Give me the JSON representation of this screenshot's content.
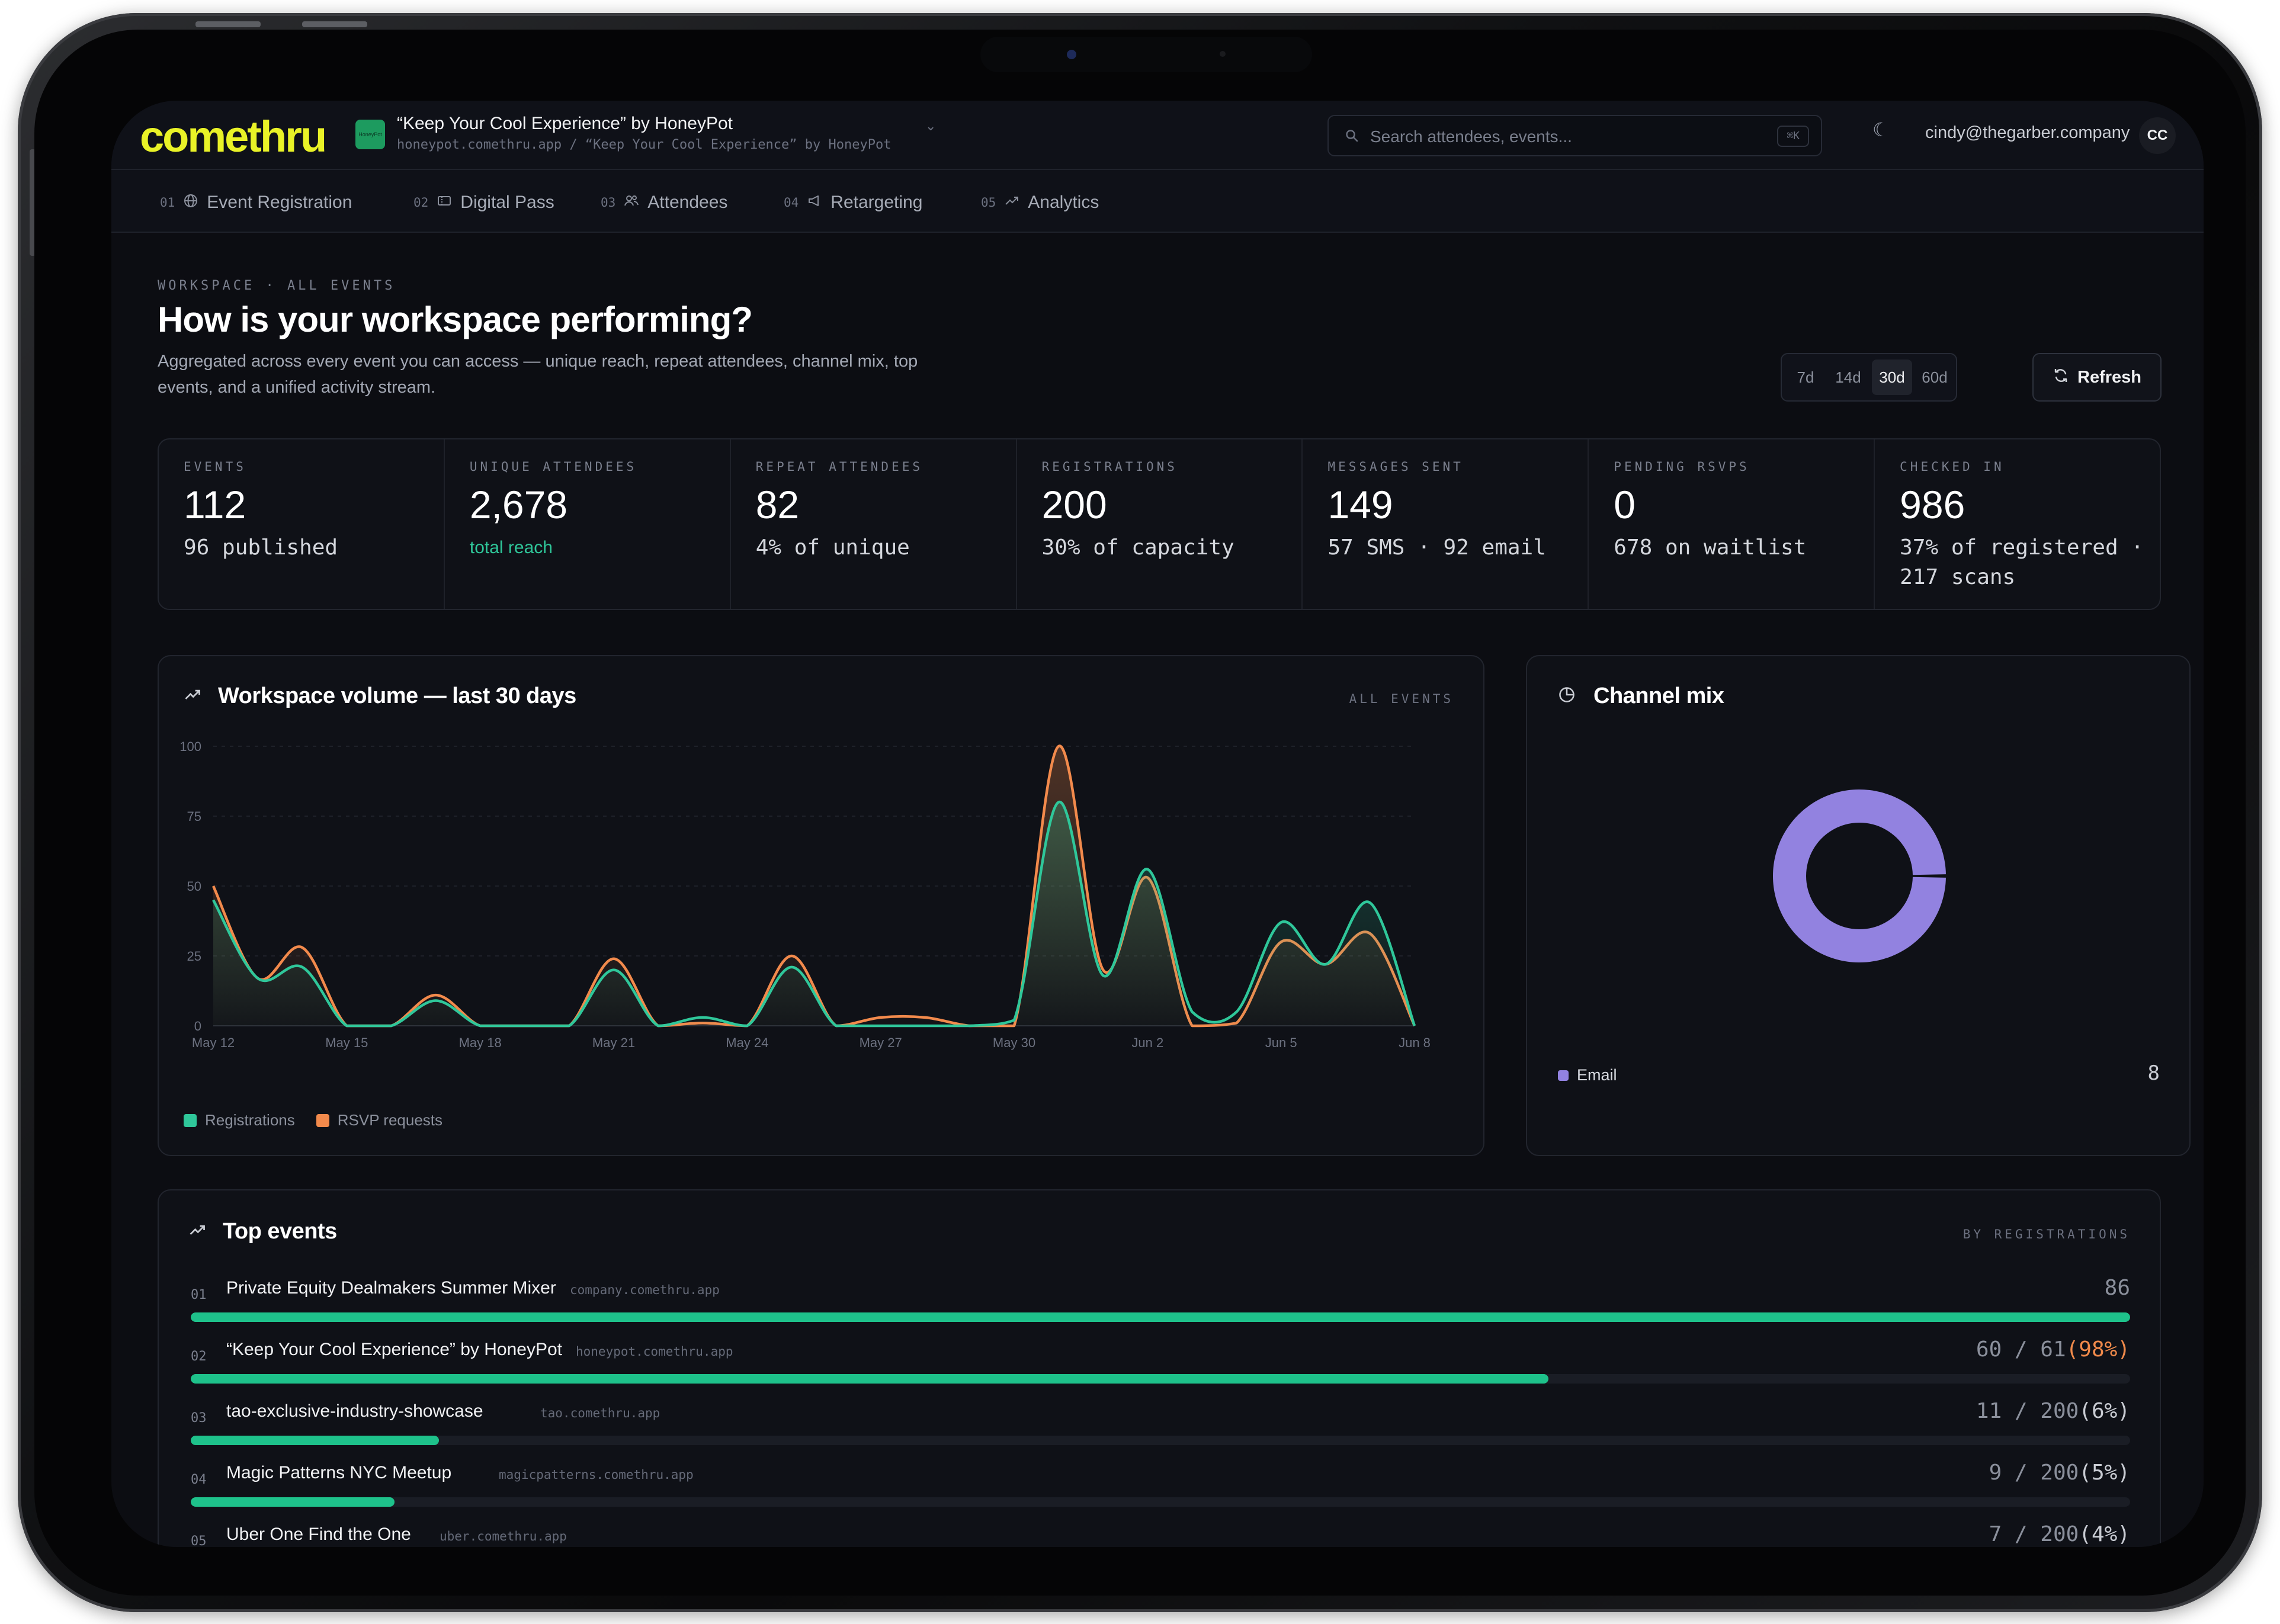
{
  "app": {
    "logo": "comethru",
    "event_thumb_text": "HoneyPot",
    "event_title": "“Keep Your Cool Experience” by HoneyPot",
    "event_path": "honeypot.comethru.app / “Keep Your Cool Experience” by HoneyPot",
    "search_placeholder": "Search attendees, events...",
    "search_shortcut": "⌘K",
    "user_email": "cindy@thegarber.company",
    "user_initials": "CC"
  },
  "tabs": [
    {
      "num": "01",
      "label": "Event Registration",
      "icon": "globe-icon"
    },
    {
      "num": "02",
      "label": "Digital Pass",
      "icon": "ticket-icon"
    },
    {
      "num": "03",
      "label": "Attendees",
      "icon": "users-icon"
    },
    {
      "num": "04",
      "label": "Retargeting",
      "icon": "megaphone-icon"
    },
    {
      "num": "05",
      "label": "Analytics",
      "icon": "trend-icon"
    }
  ],
  "header": {
    "eyebrow": "WORKSPACE · ALL EVENTS",
    "title": "How is your workspace performing?",
    "description": "Aggregated across every event you can access — unique reach, repeat attendees, channel mix, top events, and a unified activity stream.",
    "ranges": [
      "7d",
      "14d",
      "30d",
      "60d"
    ],
    "active_range": "30d",
    "refresh_label": "Refresh"
  },
  "stats": [
    {
      "label": "EVENTS",
      "value": "112",
      "sub": "96 published"
    },
    {
      "label": "UNIQUE ATTENDEES",
      "value": "2,678",
      "sub": "total reach"
    },
    {
      "label": "REPEAT ATTENDEES",
      "value": "82",
      "sub": "4% of unique"
    },
    {
      "label": "REGISTRATIONS",
      "value": "200",
      "sub": "30% of capacity"
    },
    {
      "label": "MESSAGES SENT",
      "value": "149",
      "sub": "57 SMS · 92 email"
    },
    {
      "label": "PENDING RSVPS",
      "value": "0",
      "sub": "678 on waitlist"
    },
    {
      "label": "CHECKED IN",
      "value": "986",
      "sub": "37% of registered · 217 scans"
    }
  ],
  "volume_panel": {
    "title": "Workspace volume — last 30 days",
    "tag": "ALL EVENTS",
    "legend": [
      "Registrations",
      "RSVP requests"
    ]
  },
  "chart_data": [
    {
      "type": "area",
      "title": "Workspace volume — last 30 days",
      "x_ticks": [
        "May 12",
        "May 15",
        "May 18",
        "May 21",
        "May 24",
        "May 27",
        "May 30",
        "Jun 2",
        "Jun 5",
        "Jun 8"
      ],
      "y_ticks": [
        0,
        25,
        50,
        75,
        100
      ],
      "ylim": [
        0,
        100
      ],
      "x": [
        "May 12",
        "May 13",
        "May 14",
        "May 15",
        "May 16",
        "May 17",
        "May 18",
        "May 19",
        "May 20",
        "May 21",
        "May 22",
        "May 23",
        "May 24",
        "May 25",
        "May 26",
        "May 27",
        "May 28",
        "May 29",
        "May 30",
        "May 31",
        "Jun 1",
        "Jun 2",
        "Jun 3",
        "Jun 4",
        "Jun 5",
        "Jun 6",
        "Jun 7",
        "Jun 8"
      ],
      "series": [
        {
          "name": "Registrations",
          "color": "#2fc79a",
          "values": [
            45,
            17,
            21,
            0,
            0,
            9,
            0,
            0,
            0,
            20,
            0,
            3,
            0,
            21,
            0,
            0,
            0,
            0,
            2,
            80,
            18,
            56,
            5,
            5,
            37,
            22,
            44,
            0
          ]
        },
        {
          "name": "RSVP requests",
          "color": "#f28a4c",
          "values": [
            50,
            17,
            28,
            0,
            0,
            11,
            0,
            0,
            0,
            24,
            0,
            1,
            0,
            25,
            0,
            3,
            3,
            0,
            0,
            100,
            20,
            53,
            0,
            1,
            30,
            22,
            33,
            0
          ]
        }
      ],
      "legend": "bottom-left",
      "grid": true
    },
    {
      "type": "pie",
      "title": "Channel mix",
      "categories": [
        "Email"
      ],
      "values": [
        8
      ],
      "colors": [
        "#9282e0"
      ]
    }
  ],
  "channel_panel": {
    "title": "Channel mix",
    "legend_label": "Email",
    "legend_value": "8",
    "color": "#9282e0"
  },
  "top_events": {
    "title": "Top events",
    "tag": "BY REGISTRATIONS",
    "rows": [
      {
        "num": "01",
        "name": "Private Equity Dealmakers Summer Mixer",
        "domain": "company.comethru.app",
        "count": "86",
        "pct": "",
        "fill": 1.0
      },
      {
        "num": "02",
        "name": "“Keep Your Cool Experience” by HoneyPot",
        "domain": "honeypot.comethru.app",
        "count": "60 / 61",
        "pct": "(98%)",
        "hi": true,
        "fill": 0.7
      },
      {
        "num": "03",
        "name": "tao-exclusive-industry-showcase",
        "domain": "tao.comethru.app",
        "count": "11 / 200",
        "pct": "(6%)",
        "fill": 0.128
      },
      {
        "num": "04",
        "name": "Magic Patterns NYC Meetup",
        "domain": "magicpatterns.comethru.app",
        "count": "9 / 200",
        "pct": "(5%)",
        "fill": 0.105
      },
      {
        "num": "05",
        "name": "Uber One Find the One",
        "domain": "uber.comethru.app",
        "count": "7 / 200",
        "pct": "(4%)",
        "fill": 0.08
      }
    ]
  }
}
